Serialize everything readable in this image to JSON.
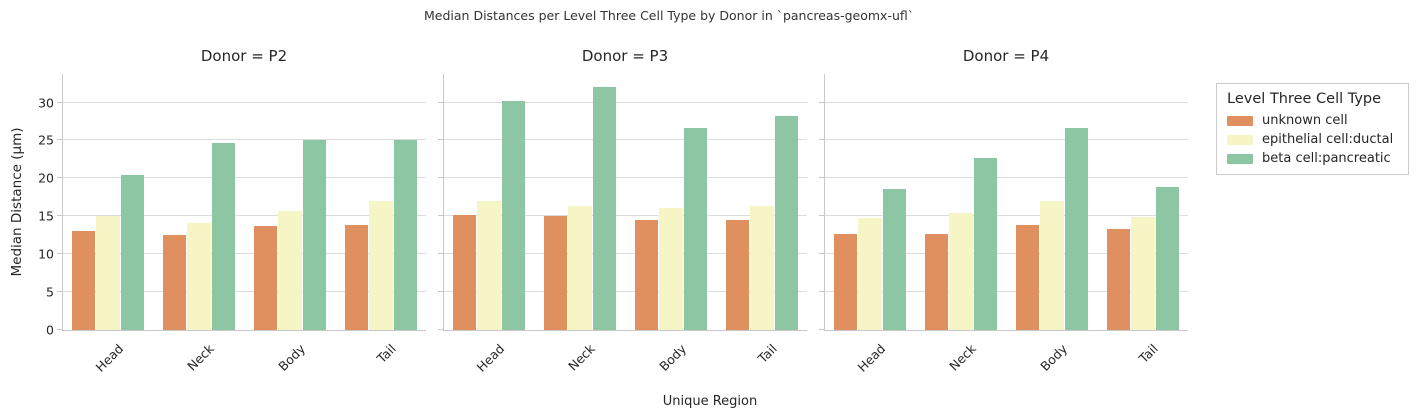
{
  "suptitle": "Median Distances per Level Three Cell Type by Donor in `pancreas-geomx-ufl`",
  "chart_data": {
    "type": "bar",
    "title": "Median Distances per Level Three Cell Type by Donor in `pancreas-geomx-ufl`",
    "xlabel": "Unique Region",
    "ylabel": "Median Distance (µm)",
    "categories": [
      "Head",
      "Neck",
      "Body",
      "Tail"
    ],
    "yticks": [
      0,
      5,
      10,
      15,
      20,
      25,
      30
    ],
    "ylim": [
      0,
      33.9
    ],
    "grid": true,
    "grid_color": "#dcdcdc",
    "spine_color": "#c8c8c8",
    "legend": {
      "title": "Level Three Cell Type",
      "position": "outside-upper-right"
    },
    "series": [
      {
        "name": "unknown cell",
        "color": "#e0905f"
      },
      {
        "name": "epithelial cell:ductal",
        "color": "#f6f5c6"
      },
      {
        "name": "beta cell:pancreatic",
        "color": "#8cc6a2"
      }
    ],
    "facets": [
      {
        "title": "Donor = P2",
        "series": [
          {
            "name": "unknown cell",
            "values": [
              13.0,
              12.5,
              13.7,
              13.9
            ]
          },
          {
            "name": "epithelial cell:ductal",
            "values": [
              15.0,
              14.1,
              15.7,
              17.0
            ]
          },
          {
            "name": "beta cell:pancreatic",
            "values": [
              20.5,
              24.7,
              25.0,
              25.0
            ]
          }
        ]
      },
      {
        "title": "Donor = P3",
        "series": [
          {
            "name": "unknown cell",
            "values": [
              15.2,
              15.0,
              14.5,
              14.5
            ]
          },
          {
            "name": "epithelial cell:ductal",
            "values": [
              17.0,
              16.4,
              16.1,
              16.3
            ]
          },
          {
            "name": "beta cell:pancreatic",
            "values": [
              30.2,
              32.0,
              26.6,
              28.2
            ]
          }
        ]
      },
      {
        "title": "Donor = P4",
        "series": [
          {
            "name": "unknown cell",
            "values": [
              12.6,
              12.7,
              13.8,
              13.3
            ]
          },
          {
            "name": "epithelial cell:ductal",
            "values": [
              14.8,
              15.4,
              17.0,
              14.9
            ]
          },
          {
            "name": "beta cell:pancreatic",
            "values": [
              18.6,
              22.7,
              26.7,
              18.8
            ]
          }
        ]
      }
    ]
  }
}
